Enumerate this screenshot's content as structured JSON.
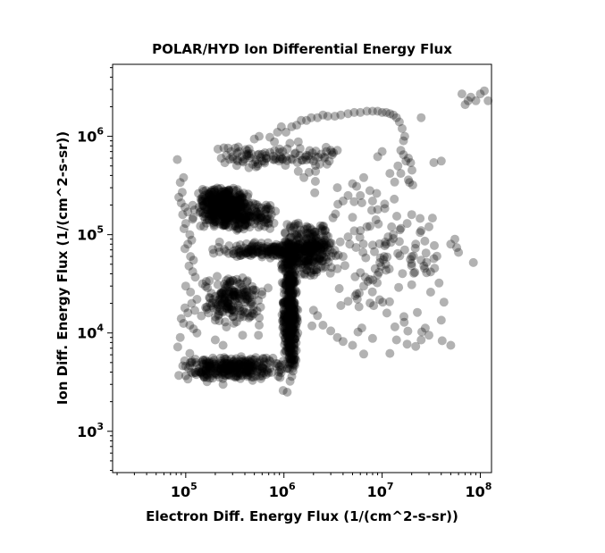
{
  "chart_data": {
    "type": "scatter",
    "title": "POLAR/HYD  Ion Differential Energy Flux",
    "xlabel": "Electron Diff. Energy Flux (1/(cm^2-s-sr))",
    "ylabel": "Ion Diff. Energy Flux (1/(cm^2-s-sr))",
    "x_scale": "log",
    "y_scale": "log",
    "xlim": [
      18000,
      130000000
    ],
    "ylim": [
      380,
      5400000
    ],
    "x_ticks": [
      {
        "base": "10",
        "exp": "5",
        "value": 100000
      },
      {
        "base": "10",
        "exp": "6",
        "value": 1000000
      },
      {
        "base": "10",
        "exp": "7",
        "value": 10000000
      },
      {
        "base": "10",
        "exp": "8",
        "value": 100000000
      }
    ],
    "y_ticks": [
      {
        "base": "10",
        "exp": "3",
        "value": 1000
      },
      {
        "base": "10",
        "exp": "4",
        "value": 10000
      },
      {
        "base": "10",
        "exp": "5",
        "value": 100000
      },
      {
        "base": "10",
        "exp": "6",
        "value": 1000000
      }
    ],
    "marker_color": "#000000",
    "marker_opacity": 0.3,
    "grid": false,
    "legend": "none",
    "clusters": [
      {
        "name": "cluster-upper-left-band",
        "x_range": [
          130000,
          450000
        ],
        "y_range": [
          150000,
          310000
        ],
        "count": 320
      },
      {
        "name": "cluster-upper-band-wide",
        "x_range": [
          110000,
          900000
        ],
        "y_range": [
          110000,
          220000
        ],
        "count": 260
      },
      {
        "name": "cluster-mid-arm",
        "x_range": [
          160000,
          3000000
        ],
        "y_range": [
          55000,
          85000
        ],
        "count": 180
      },
      {
        "name": "cluster-right-shoulder",
        "x_range": [
          900000,
          3500000
        ],
        "y_range": [
          35000,
          140000
        ],
        "count": 260
      },
      {
        "name": "cluster-vertical-column",
        "x_range": [
          950000,
          1400000
        ],
        "y_range": [
          3000,
          120000
        ],
        "count": 420
      },
      {
        "name": "cluster-bottom-band",
        "x_range": [
          80000,
          1200000
        ],
        "y_range": [
          3300,
          6000
        ],
        "count": 300
      },
      {
        "name": "cluster-left-mid",
        "x_range": [
          120000,
          700000
        ],
        "y_range": [
          12000,
          40000
        ],
        "count": 180
      },
      {
        "name": "cluster-top-mid-groups",
        "x_range": [
          200000,
          3800000
        ],
        "y_range": [
          480000,
          800000
        ],
        "count": 70
      },
      {
        "name": "scatter-right-sparse",
        "x_range": [
          1500000,
          60000000
        ],
        "y_range": [
          6000,
          600000
        ],
        "count": 110
      }
    ],
    "points": [
      [
        82000,
        580000
      ],
      [
        95000,
        380000
      ],
      [
        88000,
        340000
      ],
      [
        92000,
        270000
      ],
      [
        85000,
        240000
      ],
      [
        90000,
        210000
      ],
      [
        98000,
        190000
      ],
      [
        105000,
        170000
      ],
      [
        93000,
        160000
      ],
      [
        100000,
        130000
      ],
      [
        96000,
        115000
      ],
      [
        110000,
        100000
      ],
      [
        115000,
        88000
      ],
      [
        105000,
        80000
      ],
      [
        98000,
        72000
      ],
      [
        112000,
        60000
      ],
      [
        120000,
        55000
      ],
      [
        108000,
        48000
      ],
      [
        118000,
        42000
      ],
      [
        125000,
        37000
      ],
      [
        100000,
        30000
      ],
      [
        112000,
        26000
      ],
      [
        130000,
        22000
      ],
      [
        115000,
        20000
      ],
      [
        98000,
        18000
      ],
      [
        105000,
        16000
      ],
      [
        90000,
        14000
      ],
      [
        95000,
        12500
      ],
      [
        110000,
        12000
      ],
      [
        120000,
        11000
      ],
      [
        130000,
        10000
      ],
      [
        88000,
        9000
      ],
      [
        83000,
        7200
      ],
      [
        110000,
        6200
      ],
      [
        105000,
        3400
      ],
      [
        85000,
        3700
      ],
      [
        165000,
        3200
      ],
      [
        240000,
        3000
      ],
      [
        480000,
        3300
      ],
      [
        980000,
        2600
      ],
      [
        1080000,
        2500
      ],
      [
        200000,
        8500
      ],
      [
        240000,
        7500
      ],
      [
        380000,
        9500
      ],
      [
        550000,
        9500
      ],
      [
        260000,
        11500
      ],
      [
        200000,
        13500
      ],
      [
        170000,
        16000
      ],
      [
        330000,
        13000
      ],
      [
        560000,
        12000
      ],
      [
        230000,
        600000
      ],
      [
        260000,
        640000
      ],
      [
        290000,
        700000
      ],
      [
        320000,
        760000
      ],
      [
        350000,
        700000
      ],
      [
        270000,
        760000
      ],
      [
        300000,
        620000
      ],
      [
        370000,
        620000
      ],
      [
        250000,
        540000
      ],
      [
        340000,
        560000
      ],
      [
        380000,
        560000
      ],
      [
        420000,
        640000
      ],
      [
        440000,
        480000
      ],
      [
        480000,
        520000
      ],
      [
        520000,
        490000
      ],
      [
        500000,
        940000
      ],
      [
        560000,
        1000000
      ],
      [
        540000,
        500000
      ],
      [
        600000,
        560000
      ],
      [
        640000,
        680000
      ],
      [
        720000,
        980000
      ],
      [
        800000,
        880000
      ],
      [
        860000,
        1100000
      ],
      [
        940000,
        1250000
      ],
      [
        1050000,
        1100000
      ],
      [
        1200000,
        1250000
      ],
      [
        1350000,
        1300000
      ],
      [
        1500000,
        1450000
      ],
      [
        1700000,
        1450000
      ],
      [
        1900000,
        1550000
      ],
      [
        2200000,
        1550000
      ],
      [
        2500000,
        1650000
      ],
      [
        2800000,
        1600000
      ],
      [
        3300000,
        1600000
      ],
      [
        3800000,
        1650000
      ],
      [
        4500000,
        1700000
      ],
      [
        5200000,
        1750000
      ],
      [
        6000000,
        1750000
      ],
      [
        7000000,
        1800000
      ],
      [
        8000000,
        1800000
      ],
      [
        9000000,
        1800000
      ],
      [
        10000000,
        1750000
      ],
      [
        11000000,
        1750000
      ],
      [
        12000000,
        1700000
      ],
      [
        13000000,
        1650000
      ],
      [
        14000000,
        1550000
      ],
      [
        15000000,
        1400000
      ],
      [
        16000000,
        1200000
      ],
      [
        17000000,
        1000000
      ],
      [
        16500000,
        900000
      ],
      [
        15500000,
        720000
      ],
      [
        16500000,
        650000
      ],
      [
        17500000,
        560000
      ],
      [
        18500000,
        600000
      ],
      [
        19500000,
        540000
      ],
      [
        14500000,
        500000
      ],
      [
        15500000,
        420000
      ],
      [
        18500000,
        360000
      ],
      [
        19000000,
        340000
      ],
      [
        20500000,
        320000
      ],
      [
        25000000,
        1550000
      ],
      [
        1150000,
        850000
      ],
      [
        1400000,
        880000
      ],
      [
        1700000,
        640000
      ],
      [
        2100000,
        620000
      ],
      [
        2400000,
        660000
      ],
      [
        2700000,
        700000
      ],
      [
        3000000,
        720000
      ],
      [
        3200000,
        680000
      ],
      [
        3500000,
        720000
      ],
      [
        2000000,
        560000
      ],
      [
        2300000,
        520000
      ],
      [
        2600000,
        600000
      ],
      [
        3100000,
        650000
      ],
      [
        2900000,
        560000
      ],
      [
        1800000,
        430000
      ],
      [
        2100000,
        440000
      ],
      [
        1600000,
        380000
      ],
      [
        1400000,
        440000
      ],
      [
        9000000,
        620000
      ],
      [
        10000000,
        700000
      ],
      [
        12000000,
        420000
      ],
      [
        8000000,
        220000
      ],
      [
        9000000,
        180000
      ],
      [
        7500000,
        280000
      ],
      [
        6000000,
        250000
      ],
      [
        5500000,
        310000
      ],
      [
        6500000,
        380000
      ],
      [
        5000000,
        330000
      ],
      [
        4500000,
        250000
      ],
      [
        4000000,
        220000
      ],
      [
        3500000,
        300000
      ],
      [
        30000000,
        120000
      ],
      [
        25000000,
        110000
      ],
      [
        20000000,
        160000
      ],
      [
        18000000,
        130000
      ],
      [
        15000000,
        85000
      ],
      [
        13000000,
        100000
      ],
      [
        17000000,
        70000
      ],
      [
        20000000,
        60000
      ],
      [
        22000000,
        80000
      ],
      [
        25000000,
        55000
      ],
      [
        28000000,
        65000
      ],
      [
        40000000,
        560000
      ],
      [
        55000000,
        90000
      ],
      [
        50000000,
        80000
      ],
      [
        60000000,
        66000
      ],
      [
        70000000,
        2100000
      ],
      [
        75000000,
        2300000
      ],
      [
        80000000,
        2500000
      ],
      [
        65000000,
        2700000
      ],
      [
        90000000,
        2300000
      ],
      [
        100000000,
        2700000
      ],
      [
        110000000,
        2900000
      ],
      [
        120000000,
        2300000
      ],
      [
        85000000,
        52000
      ],
      [
        40000000,
        13500
      ],
      [
        50000000,
        7500
      ],
      [
        30000000,
        9500
      ],
      [
        25000000,
        8500
      ],
      [
        22000000,
        7300
      ],
      [
        18000000,
        7700
      ],
      [
        14000000,
        8500
      ],
      [
        12000000,
        6200
      ],
      [
        8000000,
        8800
      ],
      [
        6500000,
        6100
      ],
      [
        5000000,
        7500
      ],
      [
        4000000,
        8200
      ],
      [
        3500000,
        9000
      ],
      [
        3000000,
        10500
      ],
      [
        2500000,
        12000
      ],
      [
        2200000,
        15000
      ],
      [
        2000000,
        17000
      ],
      [
        3800000,
        19000
      ],
      [
        4500000,
        21000
      ],
      [
        5500000,
        25000
      ],
      [
        6500000,
        30000
      ],
      [
        7500000,
        35000
      ],
      [
        8500000,
        45000
      ],
      [
        9500000,
        52000
      ],
      [
        10500000,
        60000
      ],
      [
        11000000,
        80000
      ],
      [
        11500000,
        95000
      ],
      [
        12500000,
        120000
      ],
      [
        6000000,
        110000
      ],
      [
        7000000,
        120000
      ],
      [
        5000000,
        150000
      ],
      [
        4500000,
        95000
      ],
      [
        4000000,
        60000
      ],
      [
        3500000,
        45000
      ]
    ]
  }
}
